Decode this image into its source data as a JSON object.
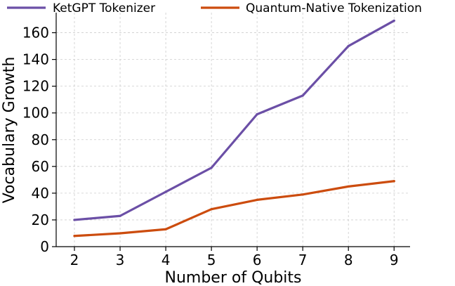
{
  "chart_data": {
    "type": "line",
    "title": "",
    "xlabel": "Number of Qubits",
    "ylabel": "Vocabulary Growth",
    "x": [
      2,
      3,
      4,
      5,
      6,
      7,
      8,
      9
    ],
    "xlim": [
      1.6,
      9.35
    ],
    "ylim": [
      0,
      175
    ],
    "xticks": [
      "2",
      "3",
      "4",
      "5",
      "6",
      "7",
      "8",
      "9"
    ],
    "yticks": [
      "0",
      "20",
      "40",
      "60",
      "80",
      "100",
      "120",
      "140",
      "160"
    ],
    "grid": true,
    "legend_position": "top",
    "series": [
      {
        "name": "KetGPT Tokenizer",
        "color": "#6b4fa6",
        "values": [
          20,
          23,
          41,
          59,
          99,
          113,
          150,
          169
        ]
      },
      {
        "name": "Quantum-Native Tokenization",
        "color": "#cc4c0e",
        "values": [
          8,
          10,
          13,
          28,
          35,
          39,
          45,
          49
        ]
      }
    ]
  }
}
